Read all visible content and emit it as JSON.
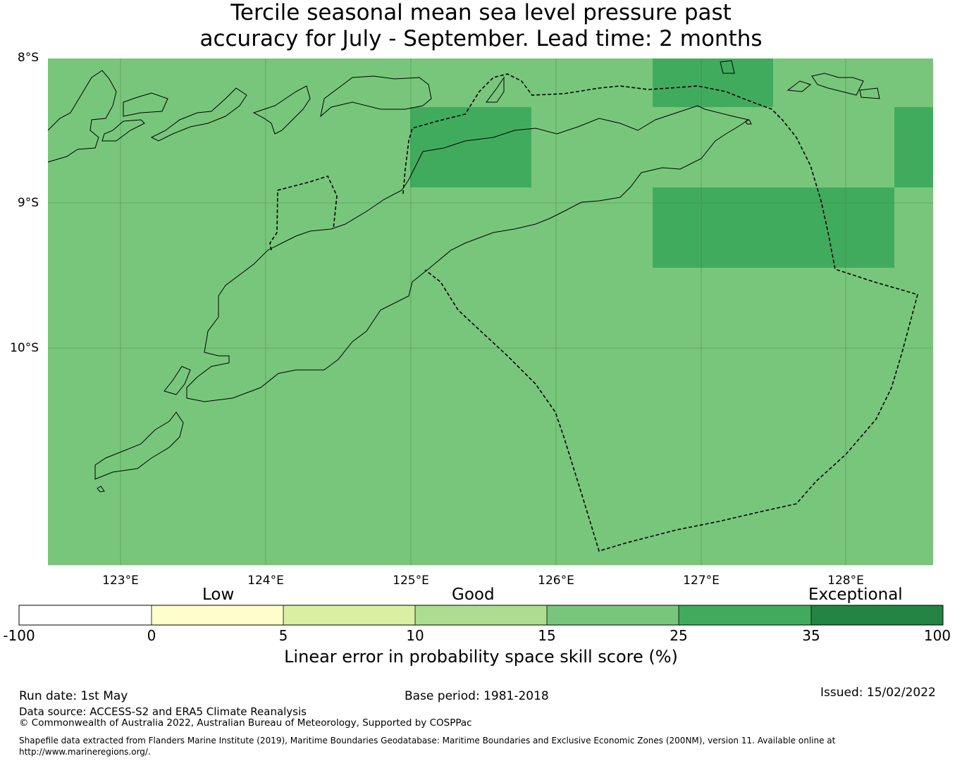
{
  "title": {
    "line1": "Tercile seasonal mean sea level pressure past",
    "line2": "accuracy for July - September. Lead time: 2 months"
  },
  "axes": {
    "lat_labels": [
      "8°S",
      "9°S",
      "10°S"
    ],
    "lon_labels": [
      "123°E",
      "124°E",
      "125°E",
      "126°E",
      "127°E",
      "128°E"
    ]
  },
  "map": {
    "background_color": "#78c67b",
    "land_outline_color": "#000000",
    "gridlines": true,
    "skill_cells": [
      {
        "lon_from": 125.0,
        "lon_to": 125.83,
        "lat_from": -8.33,
        "lat_to": -8.89,
        "value_class": "25 to 35"
      },
      {
        "lon_from": 126.67,
        "lon_to": 127.5,
        "lat_from": -8.0,
        "lat_to": -8.33,
        "value_class": "25 to 35"
      },
      {
        "lon_from": 126.67,
        "lon_to": 128.33,
        "lat_from": -8.89,
        "lat_to": -9.44,
        "value_class": "25 to 35"
      },
      {
        "lon_from": 128.33,
        "lon_to": 128.6,
        "lat_from": -8.33,
        "lat_to": -8.89,
        "value_class": "25 to 35"
      }
    ]
  },
  "colorbar": {
    "category_labels": {
      "low": "Low",
      "good": "Good",
      "exceptional": "Exceptional"
    },
    "ticks": [
      "-100",
      "0",
      "5",
      "10",
      "15",
      "25",
      "35",
      "100"
    ],
    "colors": [
      "#ffffff",
      "#ffffcc",
      "#d9f0a3",
      "#addd8e",
      "#78c67b",
      "#41ab5d",
      "#238443"
    ],
    "label": "Linear error in probability space skill score (%)"
  },
  "footer": {
    "run_date": "Run date: 1st May",
    "base_period": "Base period: 1981-2018",
    "issued": "Issued: 15/02/2022",
    "data_source": "Data source: ACCESS-S2 and ERA5 Climate Reanalysis",
    "copyright": "© Commonwealth of Australia 2022, Australian Bureau of Meteorology, Supported by COSPPac",
    "shapefile_note": "Shapefile data extracted from Flanders Marine Institute (2019), Maritime Boundaries Geodatabase: Maritime Boundaries and Exclusive Economic Zones (200NM), version 11. Available online at http://www.marineregions.org/."
  }
}
